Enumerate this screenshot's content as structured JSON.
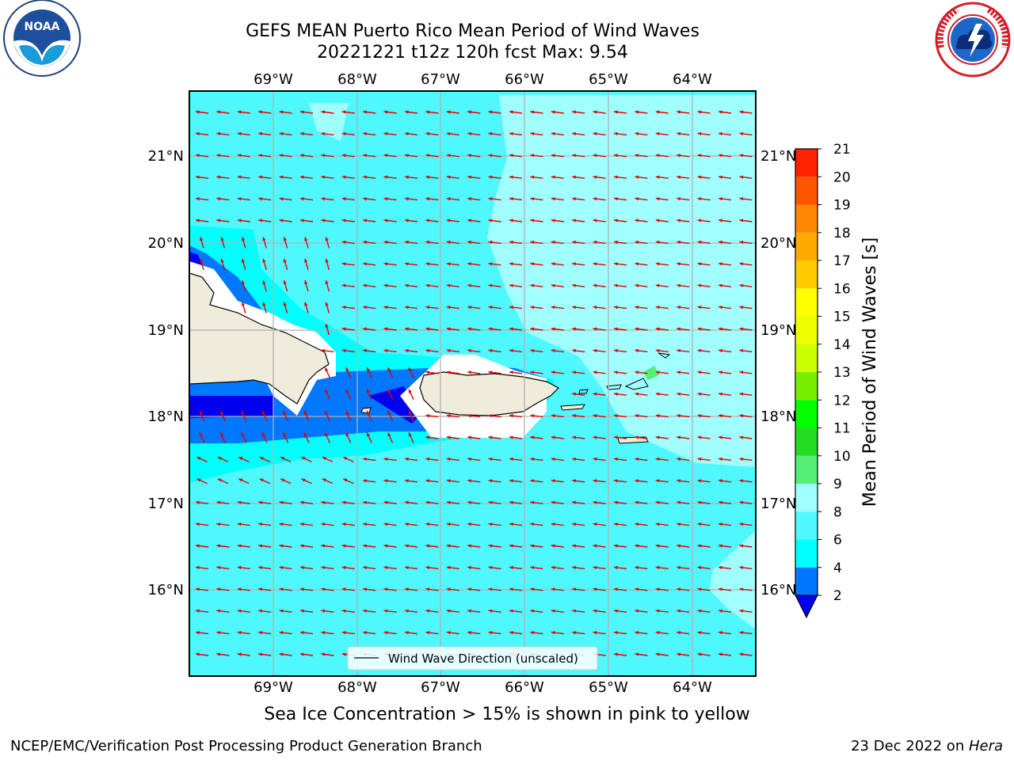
{
  "header": {
    "title_line1": "GEFS MEAN Puerto Rico Mean Period of Wind Waves",
    "title_line2": "20221221 t12z 120h fcst   Max: 9.54"
  },
  "logos": {
    "left": "NOAA",
    "right": "NATIONAL WEATHER SERVICE"
  },
  "map": {
    "lon_labels": [
      "69°W",
      "68°W",
      "67°W",
      "66°W",
      "65°W",
      "64°W"
    ],
    "lat_labels": [
      "21°N",
      "20°N",
      "19°N",
      "18°N",
      "17°N",
      "16°N"
    ],
    "legend_label": "Wind Wave Direction (unscaled)"
  },
  "colorbar": {
    "label": "Mean Period of Wind Waves [s]",
    "ticks": [
      "2",
      "4",
      "6",
      "8",
      "9",
      "10",
      "11",
      "12",
      "13",
      "14",
      "15",
      "16",
      "17",
      "18",
      "19",
      "20",
      "21"
    ],
    "colors": [
      "#0000ee",
      "#0077ff",
      "#00ffff",
      "#4ff8ff",
      "#a0ffff",
      "#55ee77",
      "#22dd22",
      "#00ff00",
      "#77ee00",
      "#ccff00",
      "#eeff00",
      "#ffff00",
      "#ffcc00",
      "#ffaa00",
      "#ff8800",
      "#ff5500",
      "#ff2200",
      "#ff0000"
    ]
  },
  "note": "Sea Ice Concentration > 15% is shown in pink to yellow",
  "footer": {
    "left": "NCEP/EMC/Verification Post Processing Product Generation Branch",
    "date": "23 Dec 2022 on ",
    "host": "Hera"
  }
}
